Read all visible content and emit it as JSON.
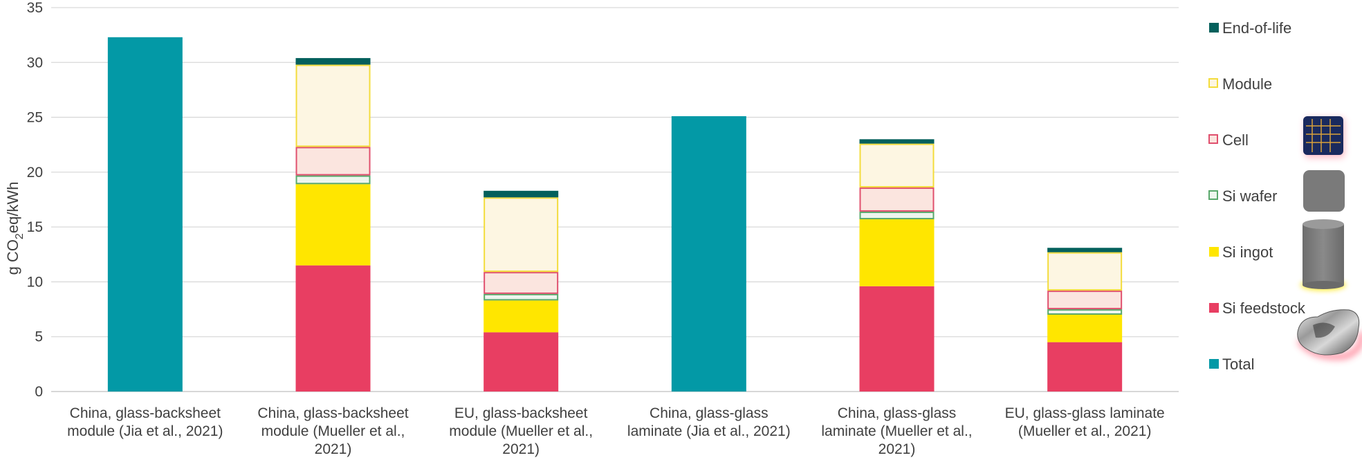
{
  "chart_data": {
    "type": "bar",
    "stacked": true,
    "title": "",
    "ylabel_parts": [
      "g CO",
      "2",
      "eq/kWh"
    ],
    "ylim": [
      0,
      35
    ],
    "yticks": [
      0,
      5,
      10,
      15,
      20,
      25,
      30,
      35
    ],
    "grid": true,
    "legend_position": "right",
    "categories": [
      [
        "China, glass-backsheet",
        "module (Jia et al., 2021)"
      ],
      [
        "China, glass-backsheet",
        "module (Mueller et al.,",
        "2021)"
      ],
      [
        "EU, glass-backsheet",
        "module (Mueller et al.,",
        "2021)"
      ],
      [
        "China, glass-glass",
        "laminate (Jia et al., 2021)"
      ],
      [
        "China, glass-glass",
        "laminate (Mueller et al.,",
        "2021)"
      ],
      [
        "EU, glass-glass laminate",
        "(Mueller et al., 2021)"
      ]
    ],
    "series": [
      {
        "name": "Si feedstock",
        "values": [
          0,
          11.5,
          5.4,
          0,
          9.6,
          4.5
        ],
        "fill": "#e83e62",
        "stroke": "#e83e62"
      },
      {
        "name": "Si ingot",
        "values": [
          0,
          7.4,
          2.9,
          0,
          6.1,
          2.5
        ],
        "fill": "#ffe600",
        "stroke": "#ffe600"
      },
      {
        "name": "Si wafer",
        "values": [
          0,
          0.8,
          0.6,
          0,
          0.7,
          0.5
        ],
        "fill": "#eef6ee",
        "stroke": "#5aa86c"
      },
      {
        "name": "Cell",
        "values": [
          0,
          2.6,
          2.0,
          0,
          2.2,
          1.7
        ],
        "fill": "#fbe5df",
        "stroke": "#e0506e"
      },
      {
        "name": "Module",
        "values": [
          0,
          7.5,
          6.8,
          0,
          4.0,
          3.5
        ],
        "fill": "#fdf6e2",
        "stroke": "#f3dc3c"
      },
      {
        "name": "End-of-life",
        "values": [
          0,
          0.6,
          0.6,
          0,
          0.4,
          0.4
        ],
        "fill": "#04605c",
        "stroke": "#04605c"
      },
      {
        "name": "Total",
        "values": [
          32.3,
          0,
          0,
          25.1,
          0,
          0
        ],
        "fill": "#0399a6",
        "stroke": "#0399a6"
      }
    ],
    "legend_order": [
      "End-of-life",
      "Module",
      "Cell",
      "Si wafer",
      "Si ingot",
      "Si feedstock",
      "Total"
    ]
  },
  "decorations": {
    "icons": [
      "solar-cell-icon",
      "silicon-wafer-icon",
      "silicon-ingot-icon",
      "silicon-feedstock-icon"
    ],
    "colors": {
      "cell_blue": "#1a2a5e",
      "cell_grid": "#d9a13a",
      "wafer_gray": "#7a7a7a",
      "glow_red": "#ff3a5a",
      "glow_yellow": "#ffe600"
    }
  }
}
